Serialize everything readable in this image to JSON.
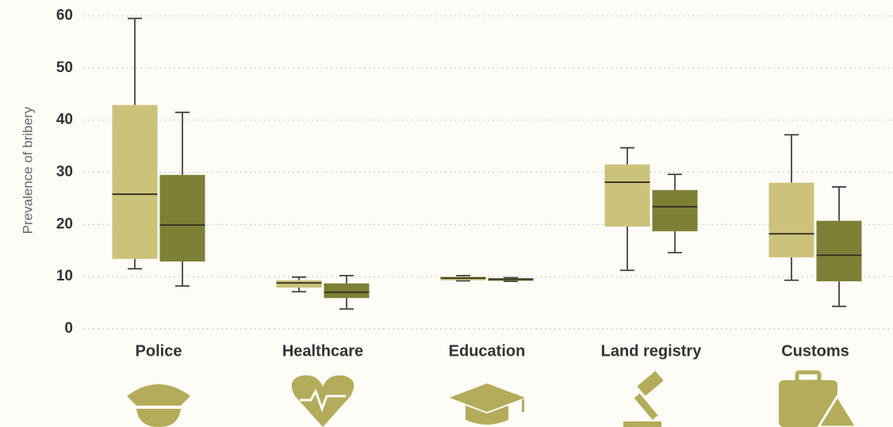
{
  "chart_data": {
    "type": "box",
    "y_label": "Prevalence of bribery",
    "categories": [
      "Police",
      "Healthcare",
      "Education",
      "Land registry",
      "Customs"
    ],
    "ylim": [
      0,
      60
    ],
    "yticks": [
      0,
      10,
      20,
      30,
      40,
      50,
      60
    ],
    "grid": true,
    "series": [
      {
        "color": "#cdc27a",
        "min": [
          11.5,
          7.1,
          9.2,
          11.2,
          9.3
        ],
        "q1": [
          13.4,
          7.9,
          9.3,
          19.6,
          13.7
        ],
        "median": [
          25.8,
          8.8,
          9.7,
          28.1,
          18.2
        ],
        "q3": [
          42.9,
          9.3,
          10.0,
          31.5,
          28.0
        ],
        "max": [
          59.5,
          9.9,
          10.2,
          34.7,
          37.2
        ]
      },
      {
        "color": "#7d7f35",
        "min": [
          8.2,
          3.8,
          9.1,
          14.6,
          4.3
        ],
        "q1": [
          12.9,
          5.9,
          9.2,
          18.7,
          9.1
        ],
        "median": [
          19.9,
          7.0,
          9.5,
          23.4,
          14.1
        ],
        "q3": [
          29.5,
          8.7,
          9.7,
          26.6,
          20.7
        ],
        "max": [
          41.5,
          10.2,
          9.8,
          29.6,
          27.2
        ]
      }
    ]
  }
}
